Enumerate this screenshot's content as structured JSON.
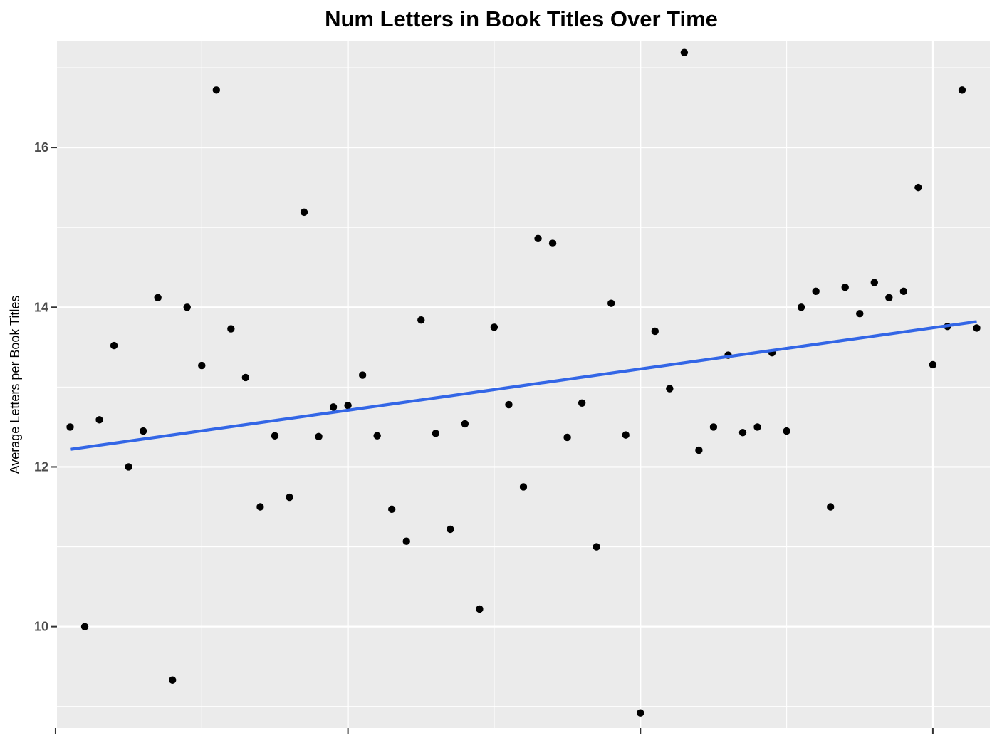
{
  "chart_data": {
    "type": "scatter",
    "title": "Num Letters in Book Titles Over Time",
    "xlabel": "",
    "ylabel": "Average Letters per Book Titles",
    "xlim": [
      0.1,
      63.9
    ],
    "ylim": [
      8.73,
      17.33
    ],
    "x_major_breaks": [
      0,
      20,
      40,
      60
    ],
    "y_major_breaks": [
      10,
      12,
      14,
      16
    ],
    "y_tick_labels": [
      "10",
      "12",
      "14",
      "16"
    ],
    "grid": true,
    "legend": "none",
    "colors": {
      "panel_background": "#ebebeb",
      "grid_line": "#ffffff",
      "point": "#000000",
      "trend_line": "#3366e6"
    },
    "points": {
      "x": [
        1,
        2,
        3,
        4,
        5,
        6,
        7,
        8,
        9,
        10,
        11,
        12,
        13,
        14,
        15,
        16,
        17,
        18,
        19,
        20,
        21,
        22,
        23,
        24,
        25,
        26,
        27,
        28,
        29,
        30,
        31,
        32,
        33,
        34,
        35,
        36,
        37,
        38,
        39,
        40,
        41,
        42,
        43,
        44,
        45,
        46,
        47,
        48,
        49,
        50,
        51,
        52,
        53,
        54,
        55,
        56,
        57,
        58,
        59,
        60,
        61,
        62,
        63
      ],
      "y": [
        12.5,
        10.0,
        12.59,
        13.52,
        12.0,
        12.45,
        14.12,
        9.33,
        14.0,
        13.27,
        16.72,
        13.73,
        13.12,
        11.5,
        12.39,
        11.62,
        15.19,
        12.38,
        12.75,
        12.77,
        13.15,
        12.39,
        11.47,
        11.07,
        13.84,
        12.42,
        11.22,
        12.54,
        10.22,
        13.75,
        12.78,
        11.75,
        14.86,
        14.8,
        12.37,
        12.8,
        11.0,
        14.05,
        12.4,
        8.92,
        13.7,
        12.98,
        17.19,
        12.21,
        12.5,
        13.4,
        12.43,
        12.5,
        13.43,
        12.45,
        14.0,
        14.2,
        11.5,
        14.25,
        13.92,
        14.31,
        14.12,
        14.2,
        15.5,
        13.28,
        13.76,
        16.72,
        13.74
      ]
    },
    "trend_line": {
      "method": "linear",
      "x": [
        1,
        63
      ],
      "y": [
        12.22,
        13.82
      ]
    }
  }
}
